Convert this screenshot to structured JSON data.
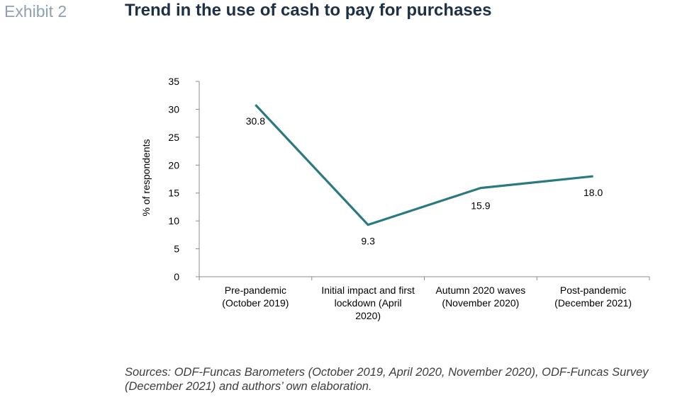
{
  "header": {
    "exhibit": "Exhibit 2",
    "title": "Trend in the use of cash to pay for purchases"
  },
  "chart_data": {
    "type": "line",
    "title": "Trend in the use of cash to pay for purchases",
    "ylabel": "% of respondents",
    "xlabel": "",
    "ylim": [
      0,
      35
    ],
    "yticks": [
      0,
      5,
      10,
      15,
      20,
      25,
      30,
      35
    ],
    "grid": false,
    "line_color": "#2a7a80",
    "categories": [
      [
        "Pre-pandemic",
        "(October 2019)"
      ],
      [
        "Initial impact and first",
        "lockdown (April",
        "2020)"
      ],
      [
        "Autumn 2020 waves",
        "(November 2020)"
      ],
      [
        "Post-pandemic",
        "(December 2021)"
      ]
    ],
    "series": [
      {
        "values": [
          30.8,
          9.3,
          15.9,
          18.0
        ],
        "labels": [
          "30.8",
          "9.3",
          "15.9",
          "18.0"
        ]
      }
    ]
  },
  "footer": {
    "sources": "Sources: ODF-Funcas Barometers (October 2019, April 2020, November 2020), ODF-Funcas Survey (December 2021) and authors’ own elaboration."
  }
}
